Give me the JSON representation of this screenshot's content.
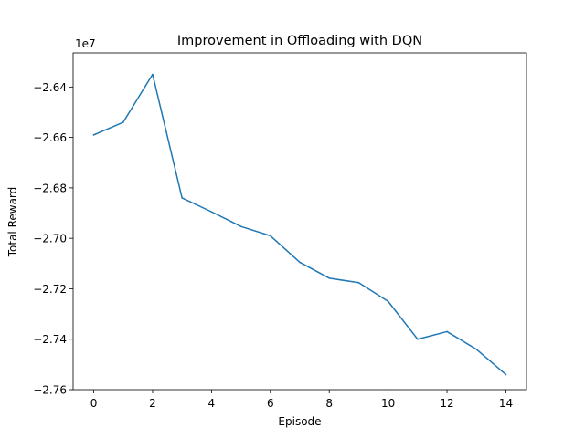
{
  "chart_data": {
    "type": "line",
    "title": "Improvement in Offloading with DQN",
    "xlabel": "Episode",
    "ylabel": "Total Reward",
    "y_offset_label": "1e7",
    "y_scale_factor": 10000000,
    "xlim": [
      -0.7,
      14.7
    ],
    "ylim": [
      -2.76,
      -2.6265
    ],
    "x_ticks": [
      0,
      2,
      4,
      6,
      8,
      10,
      12,
      14
    ],
    "x_tick_labels": [
      "0",
      "2",
      "4",
      "6",
      "8",
      "10",
      "12",
      "14"
    ],
    "y_ticks": [
      -2.76,
      -2.74,
      -2.72,
      -2.7,
      -2.68,
      -2.66,
      -2.64
    ],
    "y_tick_labels": [
      "−2.76",
      "−2.74",
      "−2.72",
      "−2.70",
      "−2.68",
      "−2.66",
      "−2.64"
    ],
    "grid": false,
    "series": [
      {
        "color": "#1f77b4",
        "x": [
          0,
          1,
          2,
          3,
          4,
          5,
          6,
          7,
          8,
          9,
          10,
          11,
          12,
          13,
          14
        ],
        "y": [
          -2.659,
          -2.654,
          -2.635,
          -2.684,
          -2.6895,
          -2.6953,
          -2.699,
          -2.7095,
          -2.7158,
          -2.7176,
          -2.725,
          -2.74,
          -2.737,
          -2.744,
          -2.754
        ]
      }
    ]
  }
}
